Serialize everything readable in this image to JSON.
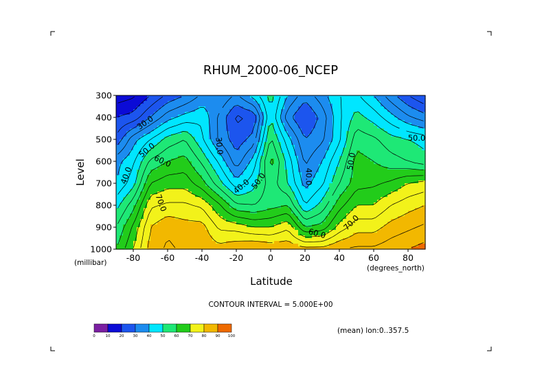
{
  "chart_data": {
    "type": "heatmap",
    "title": "RHUM_2000-06_NCEP",
    "xlabel": "Latitude",
    "ylabel": "Level",
    "x_units": "(degrees_north)",
    "y_units": "(millibar)",
    "xlim": [
      -90,
      90
    ],
    "ylim": [
      1000,
      300
    ],
    "x_ticks": [
      "-80",
      "-60",
      "-40",
      "-20",
      "0",
      "20",
      "40",
      "60",
      "80"
    ],
    "y_ticks": [
      "300",
      "400",
      "500",
      "600",
      "700",
      "800",
      "900",
      "1000"
    ],
    "contour_interval_text": "CONTOUR INTERVAL = 5.000E+00",
    "footer_text": "(mean) lon:0..357.5",
    "contour_labels": [
      "30.0",
      "50.0",
      "60.0",
      "40.0",
      "70.0",
      "30.0",
      "40.0",
      "50.0",
      "40.0",
      "50.0",
      "60.0",
      "70.0",
      "50.0"
    ],
    "colorbar": {
      "ticks": [
        "0",
        "10",
        "20",
        "30",
        "40",
        "50",
        "60",
        "70",
        "80",
        "90",
        "100"
      ],
      "colors": [
        "#7b1fa2",
        "#0b0bd6",
        "#1c55ee",
        "#1c8cef",
        "#00e6ff",
        "#1ee876",
        "#22cc1a",
        "#f2f21a",
        "#f2b800",
        "#ee6a00",
        "#ee1100"
      ]
    },
    "lat": [
      -90,
      -80,
      -70,
      -60,
      -50,
      -40,
      -30,
      -20,
      -10,
      0,
      10,
      20,
      30,
      40,
      50,
      60,
      70,
      80,
      90
    ],
    "levels": [
      300,
      400,
      500,
      600,
      700,
      800,
      900,
      1000
    ],
    "rhum": [
      [
        12,
        14,
        20,
        26,
        30,
        36,
        40,
        34,
        42,
        52,
        40,
        32,
        38,
        45,
        46,
        40,
        32,
        25,
        20
      ],
      [
        20,
        22,
        30,
        38,
        42,
        44,
        34,
        24,
        26,
        50,
        32,
        24,
        32,
        44,
        52,
        48,
        42,
        36,
        32
      ],
      [
        26,
        38,
        45,
        52,
        55,
        46,
        34,
        27,
        32,
        56,
        42,
        30,
        34,
        44,
        58,
        56,
        52,
        50,
        48
      ],
      [
        38,
        44,
        56,
        60,
        62,
        54,
        44,
        32,
        42,
        62,
        48,
        34,
        40,
        50,
        62,
        60,
        57,
        55,
        52
      ],
      [
        40,
        48,
        65,
        68,
        68,
        62,
        52,
        42,
        48,
        58,
        50,
        38,
        44,
        55,
        63,
        64,
        66,
        70,
        72
      ],
      [
        48,
        58,
        74,
        76,
        76,
        74,
        66,
        56,
        55,
        58,
        60,
        45,
        52,
        63,
        70,
        70,
        75,
        78,
        80
      ],
      [
        55,
        66,
        80,
        84,
        82,
        82,
        74,
        73,
        70,
        70,
        74,
        60,
        62,
        72,
        78,
        78,
        82,
        84,
        86
      ],
      [
        60,
        70,
        82,
        86,
        84,
        84,
        82,
        84,
        86,
        84,
        84,
        82,
        82,
        85,
        86,
        86,
        88,
        90,
        92
      ]
    ]
  }
}
